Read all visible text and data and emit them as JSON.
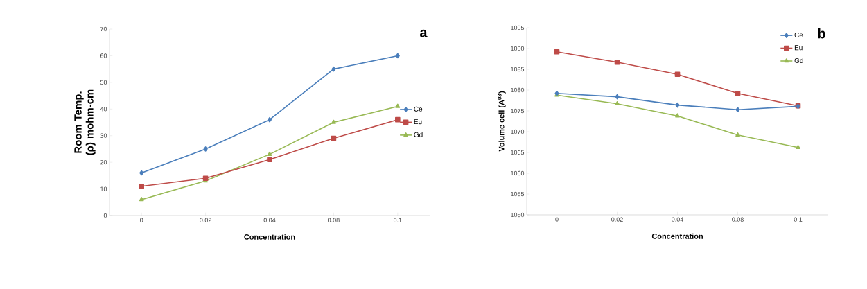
{
  "chart_data": [
    {
      "type": "line",
      "categories": [
        "0",
        "0.02",
        "0.04",
        "0.08",
        "0.1"
      ],
      "xlabel": "Concentration",
      "ylabel": "Room Temp. (ρ) mohm-cm",
      "ylim": [
        0,
        70
      ],
      "yticks": [
        0,
        10,
        20,
        30,
        40,
        50,
        60,
        70
      ],
      "grid": false,
      "legend": "right",
      "annotations": [
        "a"
      ],
      "series": [
        {
          "name": "Ce",
          "color": "#4a7ebb",
          "marker": "diamond",
          "values": [
            16,
            25,
            36,
            55,
            60
          ]
        },
        {
          "name": "Eu",
          "color": "#be4b48",
          "marker": "square",
          "values": [
            11,
            14,
            21,
            29,
            36
          ]
        },
        {
          "name": "Gd",
          "color": "#98b954",
          "marker": "triangle",
          "values": [
            6,
            13,
            23,
            35,
            41
          ]
        }
      ]
    },
    {
      "type": "line",
      "categories": [
        "0",
        "0.02",
        "0.04",
        "0.08",
        "0.1"
      ],
      "xlabel": "Concentration",
      "ylabel": "Volume cell (A$^{03}$)",
      "ylim": [
        1050,
        1095
      ],
      "yticks": [
        1050,
        1055,
        1060,
        1065,
        1070,
        1075,
        1080,
        1085,
        1090,
        1095
      ],
      "grid": false,
      "legend": "top right",
      "annotations": [
        "b"
      ],
      "series": [
        {
          "name": "Ce",
          "color": "#4a7ebb",
          "marker": "diamond",
          "values": [
            1079.2,
            1078.4,
            1076.4,
            1075.3,
            1076.1
          ]
        },
        {
          "name": "Eu",
          "color": "#be4b48",
          "marker": "square",
          "values": [
            1089.2,
            1086.7,
            1083.8,
            1079.2,
            1076.2
          ]
        },
        {
          "name": "Gd",
          "color": "#98b954",
          "marker": "triangle",
          "values": [
            1078.8,
            1076.7,
            1073.8,
            1069.2,
            1066.2
          ]
        }
      ]
    }
  ]
}
